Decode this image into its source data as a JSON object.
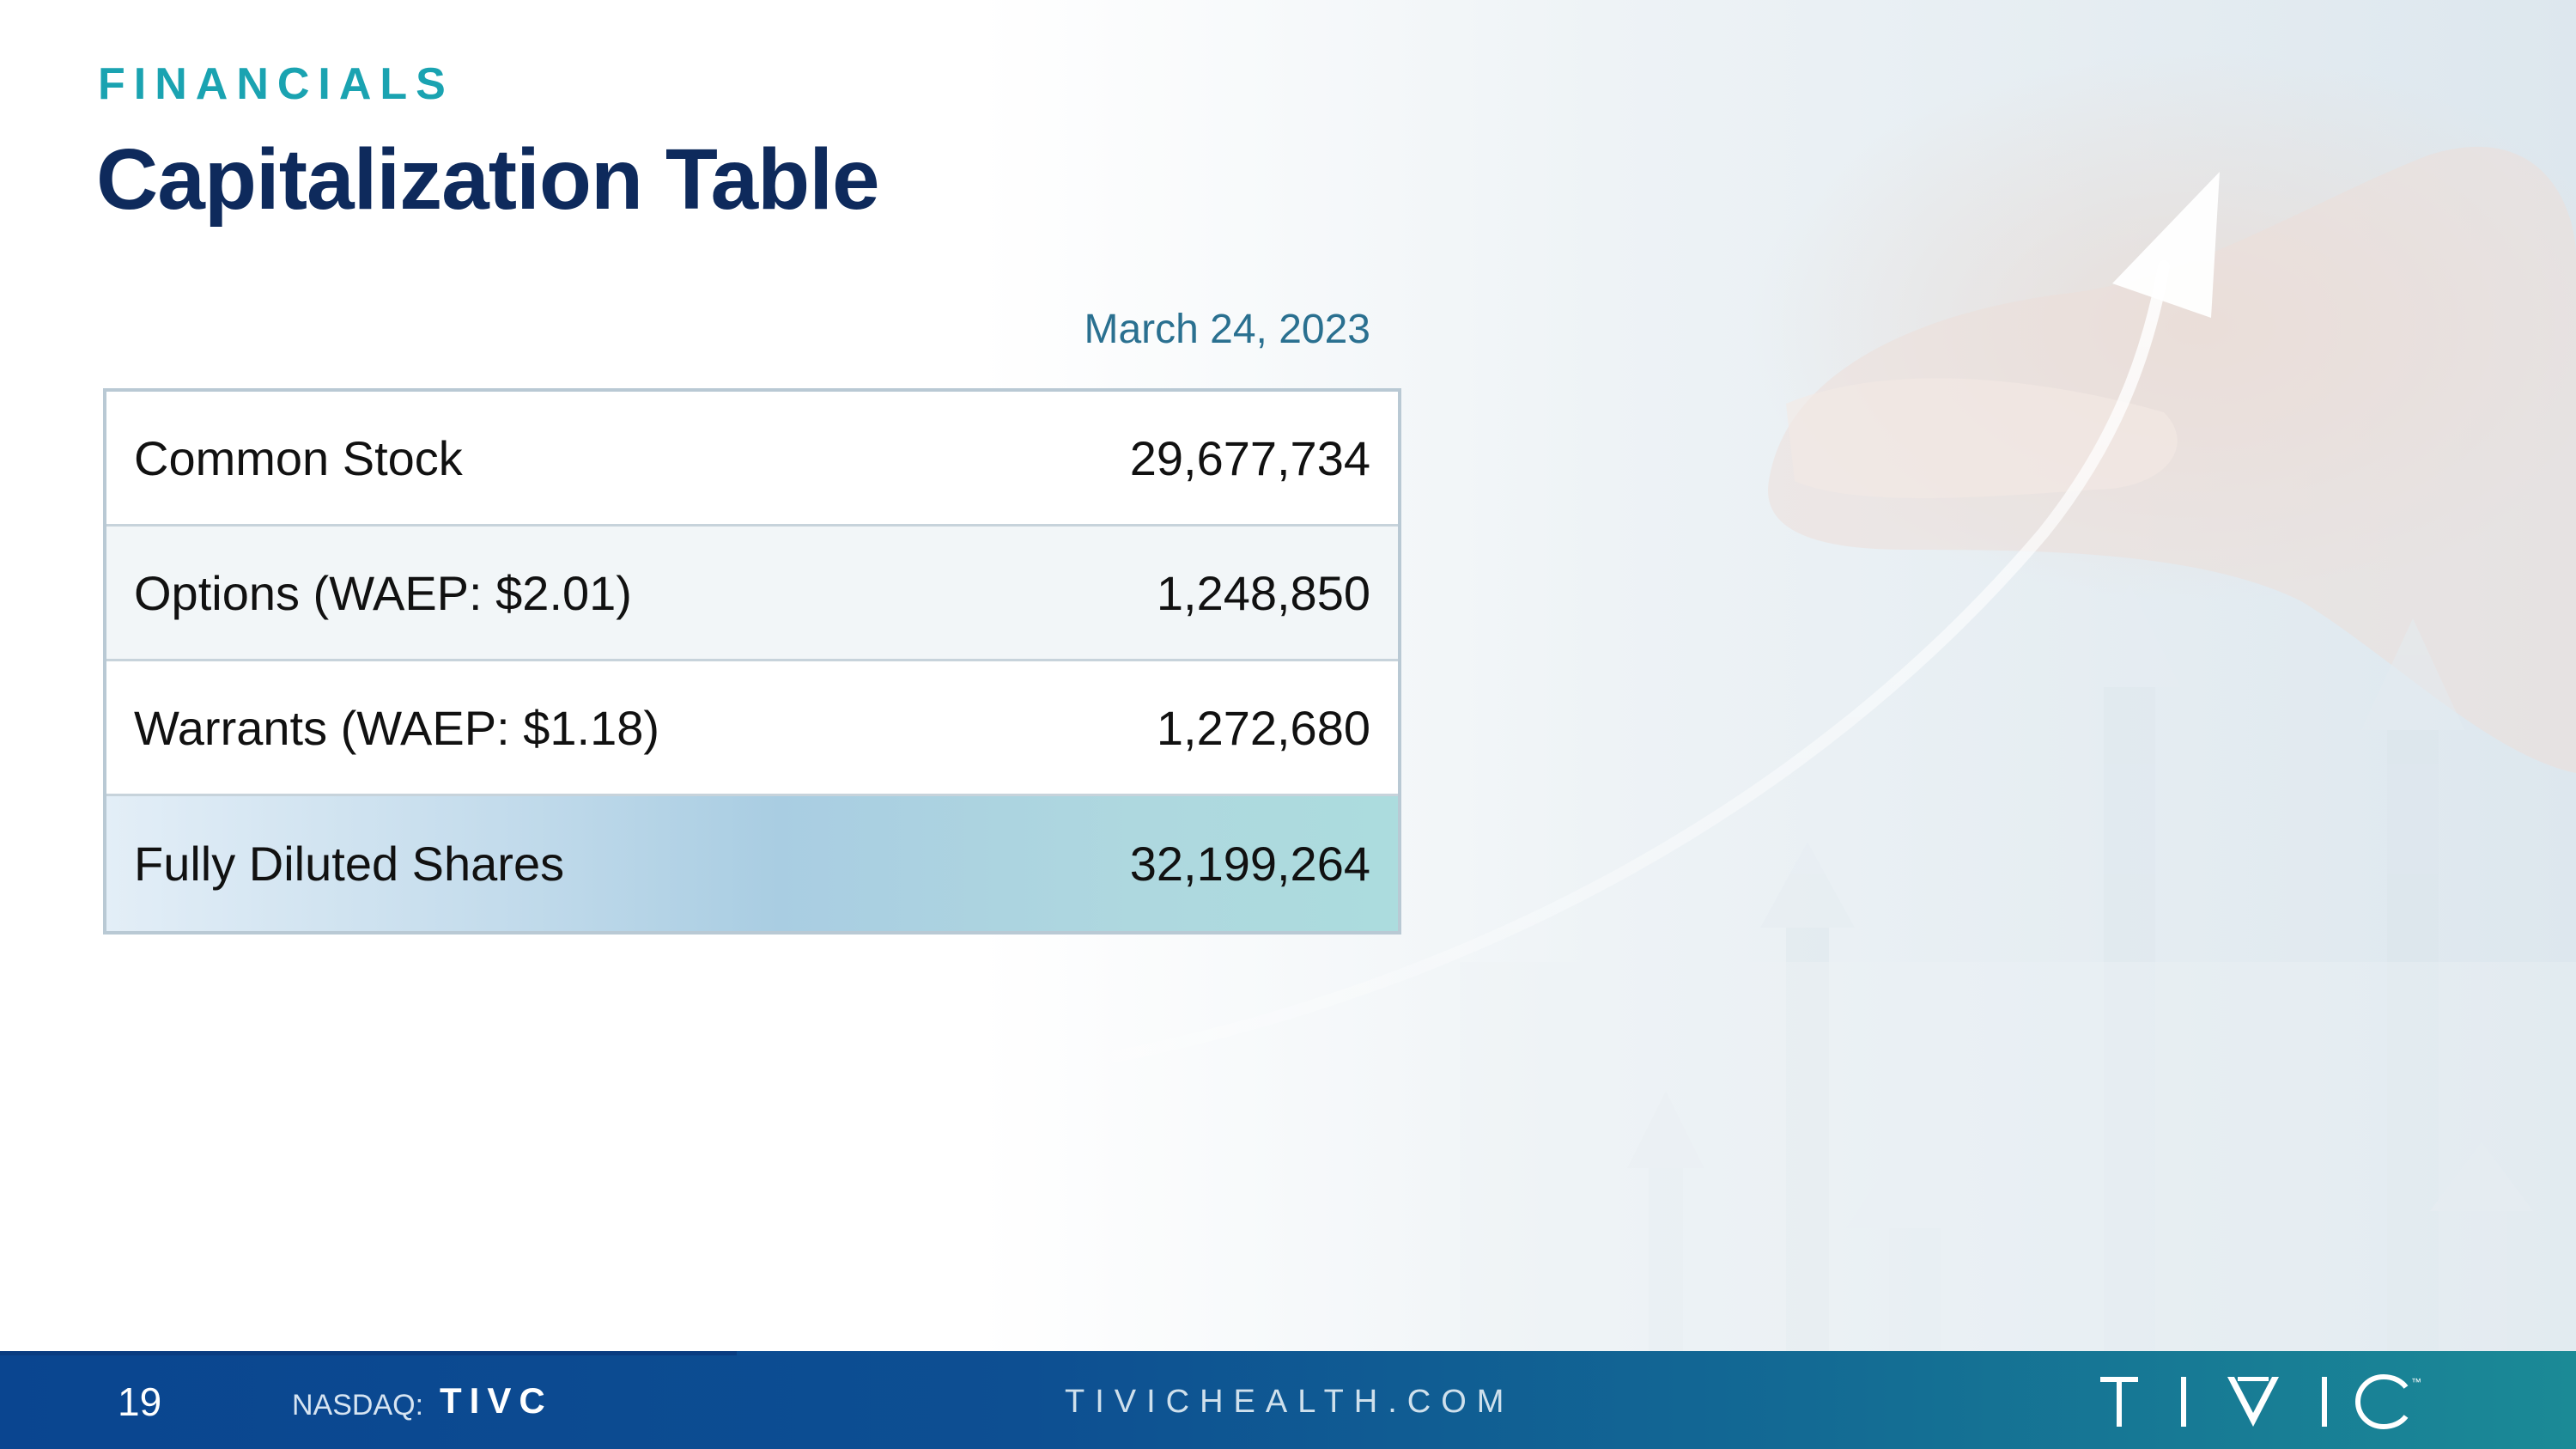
{
  "header": {
    "eyebrow": "FINANCIALS",
    "title": "Capitalization Table"
  },
  "table": {
    "column_header": "March 24, 2023",
    "rows": [
      {
        "label": "Common Stock",
        "value": "29,677,734"
      },
      {
        "label": "Options (WAEP: $2.01)",
        "value": "1,248,850"
      },
      {
        "label": "Warrants (WAEP: $1.18)",
        "value": "1,272,680"
      },
      {
        "label": "Fully Diluted Shares",
        "value": "32,199,264"
      }
    ]
  },
  "footer": {
    "page_number": "19",
    "exchange_label": "NASDAQ:",
    "ticker": "TIVC",
    "website": "TIVICHEALTH.COM",
    "logo_icon": "tivic-logo-icon",
    "logo_letters": "TIVIC",
    "trademark": "™"
  },
  "colors": {
    "eyebrow": "#1aa3b1",
    "title": "#0e2a5c",
    "date_header": "#2a7090",
    "footer_start": "#0a4590",
    "footer_end": "#1b8a96"
  }
}
